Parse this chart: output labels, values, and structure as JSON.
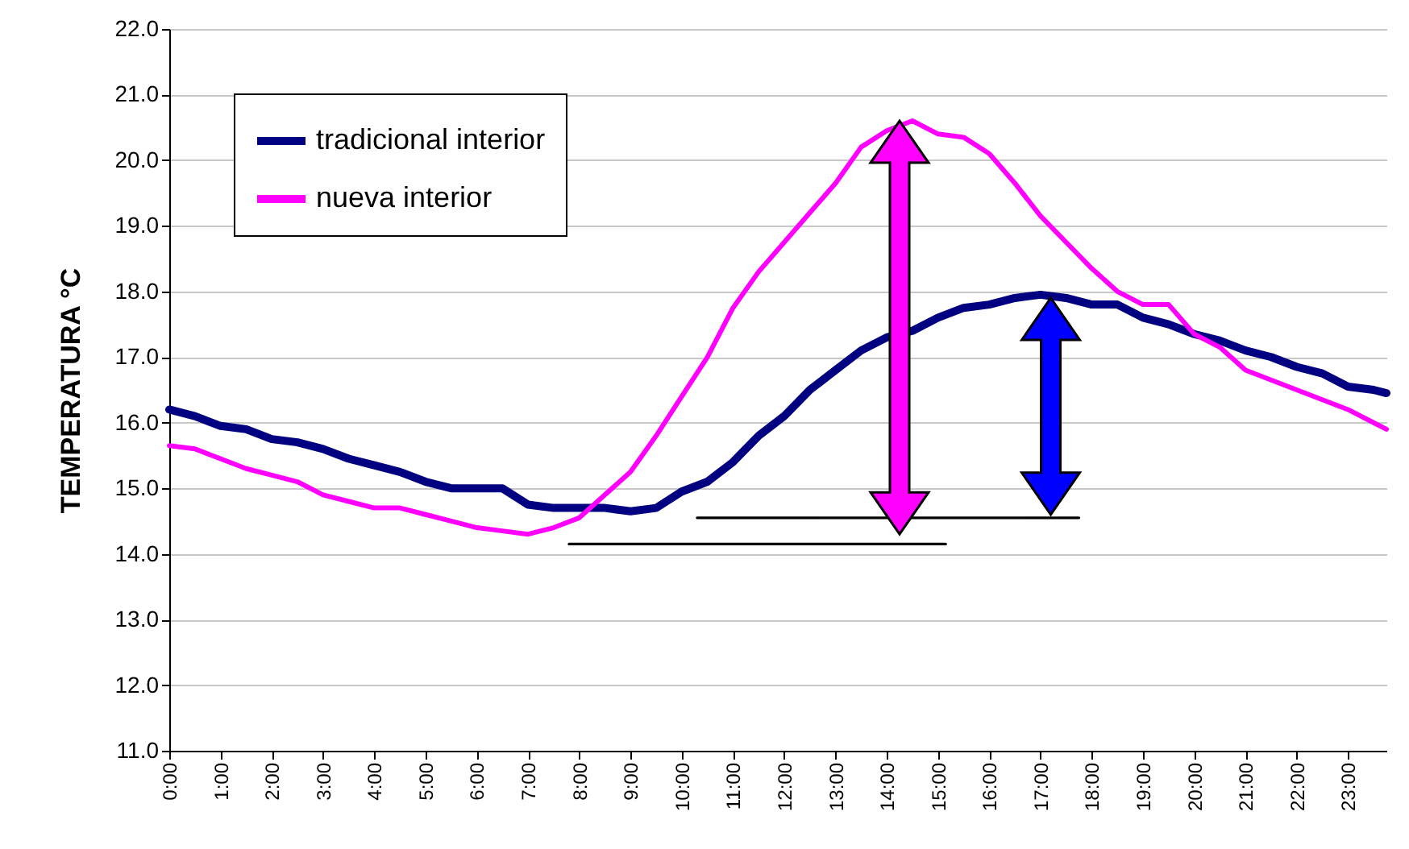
{
  "chart_data": {
    "type": "line",
    "ylabel": "TEMPERATURA °C",
    "x": [
      0,
      0.5,
      1,
      1.5,
      2,
      2.5,
      3,
      3.5,
      4,
      4.5,
      5,
      5.5,
      6,
      6.5,
      7,
      7.5,
      8,
      8.5,
      9,
      9.5,
      10,
      10.5,
      11,
      11.5,
      12,
      12.5,
      13,
      13.5,
      14,
      14.5,
      15,
      15.5,
      16,
      16.5,
      17,
      17.5,
      18,
      18.5,
      19,
      19.5,
      20,
      20.5,
      21,
      21.5,
      22,
      22.5,
      23,
      23.5,
      23.75
    ],
    "series": [
      {
        "name": "tradicional interior",
        "color": "#000080",
        "values": [
          16.2,
          16.1,
          15.95,
          15.9,
          15.75,
          15.7,
          15.6,
          15.45,
          15.35,
          15.25,
          15.1,
          15.0,
          15.0,
          15.0,
          14.75,
          14.7,
          14.7,
          14.7,
          14.65,
          14.7,
          14.95,
          15.1,
          15.4,
          15.8,
          16.1,
          16.5,
          16.8,
          17.1,
          17.3,
          17.4,
          17.6,
          17.75,
          17.8,
          17.9,
          17.95,
          17.9,
          17.8,
          17.8,
          17.6,
          17.5,
          17.35,
          17.25,
          17.1,
          17.0,
          16.85,
          16.75,
          16.55,
          16.5,
          16.45
        ]
      },
      {
        "name": "nueva interior",
        "color": "#ff00ff",
        "values": [
          15.65,
          15.6,
          15.45,
          15.3,
          15.2,
          15.1,
          14.9,
          14.8,
          14.7,
          14.7,
          14.6,
          14.5,
          14.4,
          14.35,
          14.3,
          14.4,
          14.55,
          14.9,
          15.25,
          15.8,
          16.4,
          17.0,
          17.75,
          18.3,
          18.75,
          19.2,
          19.65,
          20.2,
          20.45,
          20.6,
          20.4,
          20.35,
          20.1,
          19.65,
          19.15,
          18.75,
          18.35,
          18.0,
          17.8,
          17.8,
          17.35,
          17.15,
          16.8,
          16.65,
          16.5,
          16.35,
          16.2,
          16.0,
          15.9
        ]
      },
      {
        "color": "#000000",
        "x": [
          7.8,
          15.15
        ],
        "values": [
          14.15,
          14.15
        ]
      },
      {
        "color": "#000000",
        "x": [
          10.3,
          17.75
        ],
        "values": [
          14.55,
          14.55
        ]
      }
    ],
    "xlim": [
      0,
      23.75
    ],
    "xticks": [
      {
        "value": 0,
        "label": "0:00"
      },
      {
        "value": 1,
        "label": "1:00"
      },
      {
        "value": 2,
        "label": "2:00"
      },
      {
        "value": 3,
        "label": "3:00"
      },
      {
        "value": 4,
        "label": "4:00"
      },
      {
        "value": 5,
        "label": "5:00"
      },
      {
        "value": 6,
        "label": "6:00"
      },
      {
        "value": 7,
        "label": "7:00"
      },
      {
        "value": 8,
        "label": "8:00"
      },
      {
        "value": 9,
        "label": "9:00"
      },
      {
        "value": 10,
        "label": "10:00"
      },
      {
        "value": 11,
        "label": "11:00"
      },
      {
        "value": 12,
        "label": "12:00"
      },
      {
        "value": 13,
        "label": "13:00"
      },
      {
        "value": 14,
        "label": "14:00"
      },
      {
        "value": 15,
        "label": "15:00"
      },
      {
        "value": 16,
        "label": "16:00"
      },
      {
        "value": 17,
        "label": "17:00"
      },
      {
        "value": 18,
        "label": "18:00"
      },
      {
        "value": 19,
        "label": "19:00"
      },
      {
        "value": 20,
        "label": "20:00"
      },
      {
        "value": 21,
        "label": "21:00"
      },
      {
        "value": 22,
        "label": "22:00"
      },
      {
        "value": 23,
        "label": "23:00"
      }
    ],
    "ylim": [
      11,
      22
    ],
    "yticks": [
      {
        "value": 11,
        "label": "11.0"
      },
      {
        "value": 12,
        "label": "12.0"
      },
      {
        "value": 13,
        "label": "13.0"
      },
      {
        "value": 14,
        "label": "14.0"
      },
      {
        "value": 15,
        "label": "15.0"
      },
      {
        "value": 16,
        "label": "16.0"
      },
      {
        "value": 17,
        "label": "17.0"
      },
      {
        "value": 18,
        "label": "18.0"
      },
      {
        "value": 19,
        "label": "19.0"
      },
      {
        "value": 20,
        "label": "20.0"
      },
      {
        "value": 21,
        "label": "21.0"
      },
      {
        "value": 22,
        "label": "22.0"
      }
    ],
    "grid": "y",
    "legend": "top left",
    "marker": "none",
    "line_style": "solid"
  }
}
